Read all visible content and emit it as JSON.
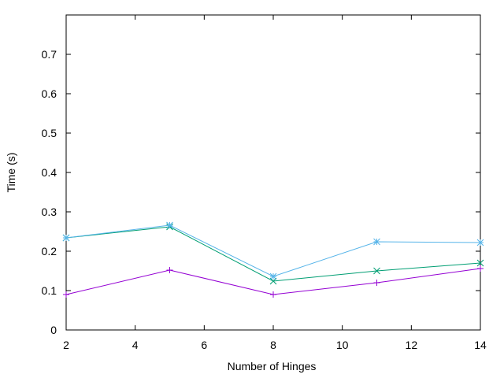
{
  "chart_data": {
    "type": "line",
    "xlabel": "Number of Hinges",
    "ylabel": "Time (s)",
    "xlim": [
      2,
      14
    ],
    "ylim": [
      0,
      0.8
    ],
    "xticks": [
      2,
      4,
      6,
      8,
      10,
      12,
      14
    ],
    "yticks": [
      0,
      0.1,
      0.2,
      0.3,
      0.4,
      0.5,
      0.6,
      0.7
    ],
    "xtick_labels": [
      "2",
      "4",
      "6",
      "8",
      "10",
      "12",
      "14"
    ],
    "ytick_labels": [
      "0",
      "0.1",
      "0.2",
      "0.3",
      "0.4",
      "0.5",
      "0.6",
      "0.7"
    ],
    "grid": false,
    "legend": "none",
    "x": [
      2,
      5,
      8,
      11,
      14
    ],
    "series": [
      {
        "values": [
          0.09,
          0.152,
          0.09,
          0.12,
          0.156
        ],
        "color": "#9400d3",
        "marker": "plus"
      },
      {
        "values": [
          0.234,
          0.262,
          0.124,
          0.15,
          0.17
        ],
        "color": "#009e73",
        "marker": "cross"
      },
      {
        "values": [
          0.234,
          0.266,
          0.136,
          0.224,
          0.222
        ],
        "color": "#56b4e9",
        "marker": "star"
      }
    ]
  }
}
